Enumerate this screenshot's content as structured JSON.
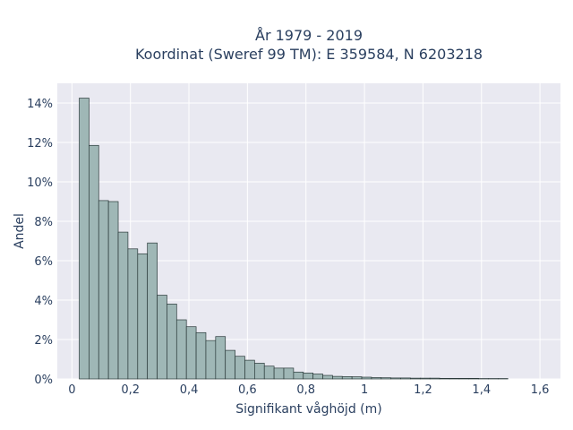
{
  "chart_data": {
    "type": "bar",
    "title_line1": "År 1979 - 2019",
    "title_line2": "Koordinat (Sweref 99 TM): E 359584, N 6203218",
    "xlabel": "Signifikant våghöjd (m)",
    "ylabel": "Andel",
    "xlim": [
      -0.05,
      1.67
    ],
    "ylim": [
      0,
      0.15
    ],
    "x_ticks": [
      0,
      0.2,
      0.4,
      0.6,
      0.8,
      1,
      1.2,
      1.4,
      1.6
    ],
    "x_tick_labels": [
      "0",
      "0,2",
      "0,4",
      "0,6",
      "0,8",
      "1",
      "1,2",
      "1,4",
      "1,6"
    ],
    "y_ticks": [
      0,
      0.02,
      0.04,
      0.06,
      0.08,
      0.1,
      0.12,
      0.14
    ],
    "y_tick_labels": [
      "0%",
      "2%",
      "4%",
      "6%",
      "8%",
      "10%",
      "12%",
      "14%"
    ],
    "grid": true,
    "bin_start": 0.025,
    "bin_width": 0.0333,
    "values": [
      0.1425,
      0.1185,
      0.0905,
      0.09,
      0.0745,
      0.066,
      0.0635,
      0.069,
      0.0425,
      0.038,
      0.03,
      0.0265,
      0.0235,
      0.0195,
      0.0215,
      0.0145,
      0.0115,
      0.0095,
      0.008,
      0.0065,
      0.0055,
      0.0055,
      0.0035,
      0.003,
      0.0025,
      0.0018,
      0.0013,
      0.0012,
      0.0011,
      0.0009,
      0.0007,
      0.0006,
      0.0005,
      0.0005,
      0.0004,
      0.0004,
      0.0004,
      0.0003,
      0.0003,
      0.0003,
      0.0003,
      0.0002,
      0.0002,
      0.0002
    ]
  }
}
